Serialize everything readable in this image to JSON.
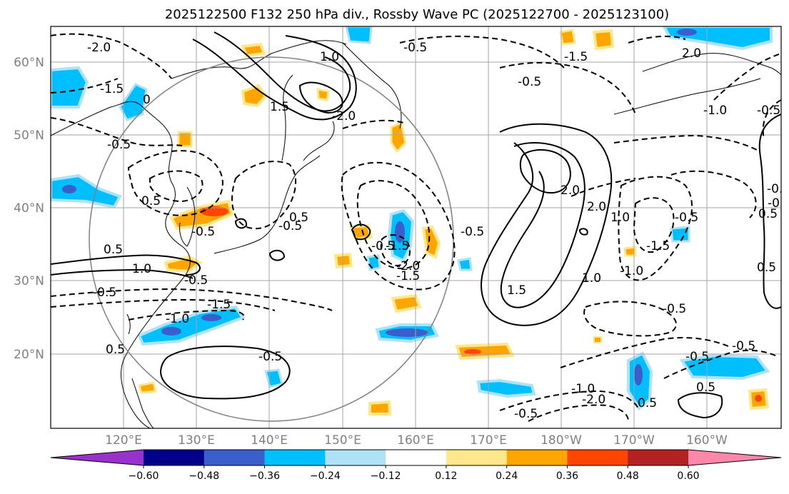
{
  "title": "2025122500 F132 250 hPa div., Rossby Wave PC (2025122700 - 2025123100)",
  "lat_labels": [
    "60°N",
    "50°N",
    "40°N",
    "30°N",
    "20°N"
  ],
  "lon_labels": [
    "120°E",
    "130°E",
    "140°E",
    "150°E",
    "160°E",
    "170°E",
    "180°W",
    "170°W",
    "160°W"
  ],
  "colorbar": {
    "ticks": [
      "−0.60",
      "−0.48",
      "−0.36",
      "−0.24",
      "−0.12",
      "0.12",
      "0.24",
      "0.36",
      "0.48",
      "0.60"
    ],
    "colors": [
      "#9932cc",
      "#00008b",
      "#3a5fcd",
      "#00bfff",
      "#ade2f7",
      "#ffffff",
      "#ffe88c",
      "#ffa500",
      "#ff4500",
      "#b22222",
      "#ff88aa"
    ]
  },
  "contour_labels": {
    "l1": "-2.0",
    "l2": "-1.5",
    "l3": "0",
    "l4": "-0.5",
    "l5": "1.0",
    "l6": "1.5",
    "l7": "-2.0",
    "l8": "-0.5",
    "l9": "-1.5",
    "l10": "-0.5",
    "l11": "2.0",
    "l12": "-0.5",
    "l13": "-1.0",
    "l14": "0.5",
    "l15": "-0.5",
    "l16": "0.5",
    "l17": "-0.5",
    "l18": "0.5",
    "l19": "-0.5",
    "l20": "1.0",
    "l21": "-0.5",
    "l22": "-1.5",
    "l23": "0.5",
    "l24": "-1.0",
    "l25": "-1.5",
    "l26": "-0.5",
    "l27": "-0.5",
    "l28": "-0.5",
    "l29": "-2.0",
    "l30": "-1.5",
    "l31": "2.0",
    "l32": "2.0",
    "l33": "1.5",
    "l34": "1.0",
    "l35": "-0.5",
    "l36": "-1.5",
    "l37": "-1.0",
    "l38": "-0.5",
    "l39": "-0.5",
    "l40": "-0.5",
    "l41": "-1.0",
    "l42": "-2.0",
    "l43": "0.5",
    "l44": "-0.5",
    "l45": "0.5",
    "l46": "-0.5",
    "l47": "1.0",
    "l48": "-0.5",
    "l49": "0.5",
    "l50": "0.5"
  }
}
